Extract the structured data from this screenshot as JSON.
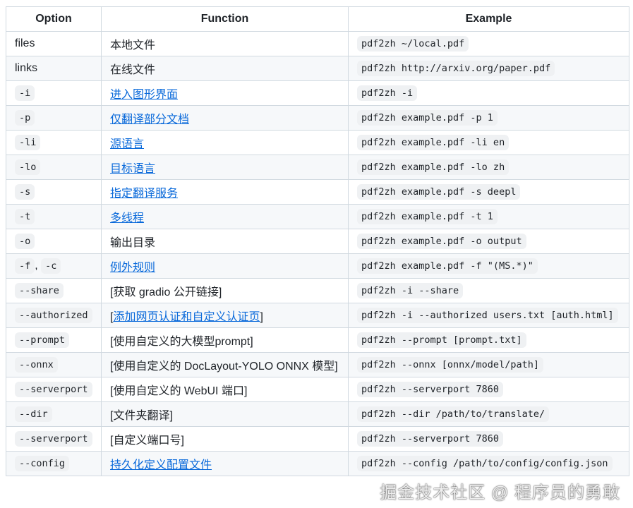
{
  "headers": [
    "Option",
    "Function",
    "Example"
  ],
  "rows": [
    {
      "option": "files",
      "option_code": false,
      "function": "本地文件",
      "link": false,
      "example": "pdf2zh ~/local.pdf"
    },
    {
      "option": "links",
      "option_code": false,
      "function": "在线文件",
      "link": false,
      "example": "pdf2zh http://arxiv.org/paper.pdf"
    },
    {
      "option": "-i",
      "option_code": true,
      "function": "进入图形界面",
      "link": true,
      "example": "pdf2zh -i"
    },
    {
      "option": "-p",
      "option_code": true,
      "function": "仅翻译部分文档",
      "link": true,
      "example": "pdf2zh example.pdf -p 1"
    },
    {
      "option": "-li",
      "option_code": true,
      "function": "源语言",
      "link": true,
      "example": "pdf2zh example.pdf -li en"
    },
    {
      "option": "-lo",
      "option_code": true,
      "function": "目标语言",
      "link": true,
      "example": "pdf2zh example.pdf -lo zh"
    },
    {
      "option": "-s",
      "option_code": true,
      "function": "指定翻译服务",
      "link": true,
      "example": "pdf2zh example.pdf -s deepl"
    },
    {
      "option": "-t",
      "option_code": true,
      "function": "多线程",
      "link": true,
      "example": "pdf2zh example.pdf -t 1"
    },
    {
      "option": "-o",
      "option_code": true,
      "function": "输出目录",
      "link": false,
      "example": "pdf2zh example.pdf -o output"
    },
    {
      "option": "-f",
      "option2": "-c",
      "option_code": true,
      "function": "例外规则",
      "link": true,
      "example": "pdf2zh example.pdf -f \"(MS.*)\""
    },
    {
      "option": "--share",
      "option_code": true,
      "function": "[获取 gradio 公开链接]",
      "link": false,
      "example": "pdf2zh -i --share"
    },
    {
      "option": "--authorized",
      "option_code": true,
      "function": "添加网页认证和自定义认证页",
      "link": true,
      "bracket": true,
      "example": "pdf2zh -i --authorized users.txt [auth.html]"
    },
    {
      "option": "--prompt",
      "option_code": true,
      "function": "[使用自定义的大模型prompt]",
      "link": false,
      "example": "pdf2zh --prompt [prompt.txt]"
    },
    {
      "option": "--onnx",
      "option_code": true,
      "function": "[使用自定义的 DocLayout-YOLO ONNX 模型]",
      "link": false,
      "example": "pdf2zh --onnx [onnx/model/path]"
    },
    {
      "option": "--serverport",
      "option_code": true,
      "function": "[使用自定义的 WebUI 端口]",
      "link": false,
      "example": "pdf2zh --serverport 7860"
    },
    {
      "option": "--dir",
      "option_code": true,
      "function": "[文件夹翻译]",
      "link": false,
      "example": "pdf2zh --dir /path/to/translate/"
    },
    {
      "option": "--serverport",
      "option_code": true,
      "function": "[自定义端口号]",
      "link": false,
      "example": "pdf2zh --serverport 7860"
    },
    {
      "option": "--config",
      "option_code": true,
      "function": "持久化定义配置文件",
      "link": true,
      "example": "pdf2zh --config /path/to/config/config.json"
    }
  ],
  "watermark": "掘金技术社区 @ 程序员的勇敢",
  "colors": {
    "link": "#0969da",
    "border": "#d1d9e0",
    "stripe": "#f6f8fa"
  }
}
